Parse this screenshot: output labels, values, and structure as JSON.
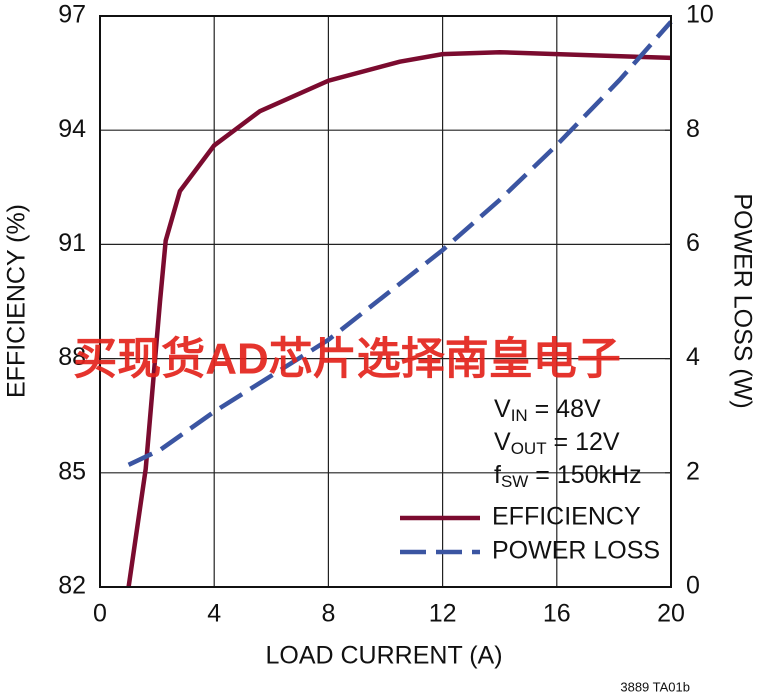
{
  "chart_data": {
    "type": "line",
    "x_label": "LOAD CURRENT (A)",
    "y_label": "EFFICIENCY (%)",
    "y2_label": "POWER LOSS (W)",
    "xlim": [
      0,
      20
    ],
    "xticks": [
      0,
      4,
      8,
      12,
      16,
      20
    ],
    "ylim": [
      82,
      97
    ],
    "yticks": [
      82,
      85,
      88,
      91,
      94,
      97
    ],
    "y2lim": [
      0,
      10
    ],
    "y2ticks": [
      0,
      2,
      4,
      6,
      8,
      10
    ],
    "grid": true,
    "legend": "lower right",
    "series": [
      {
        "name": "EFFICIENCY",
        "color": "#7b0b2f",
        "linestyle": "solid",
        "x": [
          1.0,
          1.6,
          2.1,
          2.3,
          2.8,
          4.0,
          5.6,
          8.0,
          10.5,
          12.0,
          14.0,
          16.0,
          20.0
        ],
        "values": [
          82.0,
          85.1,
          89.5,
          91.1,
          92.4,
          93.6,
          94.5,
          95.3,
          95.8,
          96.0,
          96.05,
          96.0,
          95.9
        ]
      },
      {
        "name": "POWER LOSS",
        "color": "#3b55a2",
        "linestyle": "dashed",
        "axis": "y2",
        "x": [
          1.0,
          2.1,
          4.0,
          8.0,
          12.0,
          14.0,
          16.0,
          18.2,
          20.0
        ],
        "values": [
          2.14,
          2.4,
          3.07,
          4.33,
          5.9,
          6.78,
          7.74,
          8.88,
          9.9
        ]
      }
    ],
    "annotations": [
      {
        "main": "V",
        "sub": "IN",
        "rest": " = 48V"
      },
      {
        "main": "V",
        "sub": "OUT",
        "rest": " = 12V"
      },
      {
        "main": "f",
        "sub": "SW",
        "rest": " = 150kHz"
      }
    ],
    "watermark": "买现货AD芯片选择南皇电子",
    "figure_id": "3889 TA01b"
  }
}
